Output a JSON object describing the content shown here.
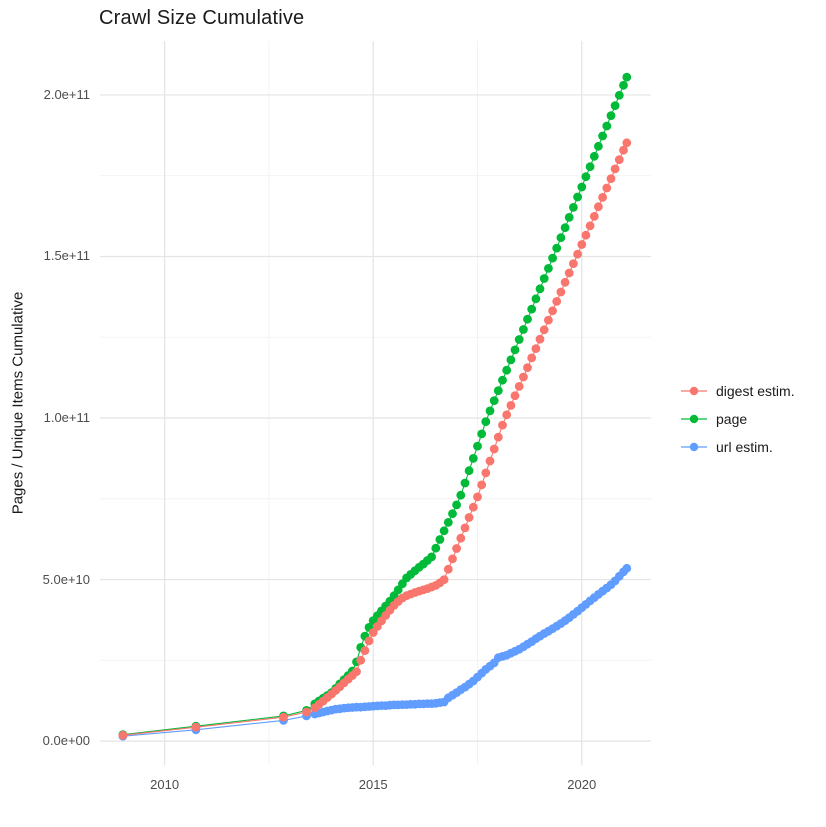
{
  "title": "Crawl Size Cumulative",
  "chart_data": {
    "type": "scatter",
    "title": "Crawl Size Cumulative",
    "xlabel": "",
    "ylabel": "Pages / Unique Items Cumulative",
    "value_unit": "1e9",
    "grid": true,
    "legend_position": "right",
    "x_domain": [
      2008.45,
      2021.66
    ],
    "y_domain": [
      -7.4,
      216.7
    ],
    "x_ticks": {
      "labels": [
        "2010",
        "2015",
        "2020"
      ],
      "values": [
        2010,
        2015,
        2020
      ],
      "minor": [
        2012.5,
        2017.5
      ]
    },
    "y_ticks": {
      "labels": [
        "0.0e+00",
        "5.0e+10",
        "1.0e+11",
        "1.5e+11",
        "2.0e+11"
      ],
      "values": [
        0,
        50,
        100,
        150,
        200
      ],
      "minor": [
        25,
        75,
        125,
        175
      ]
    },
    "draw_order": [
      "page",
      "url estim.",
      "digest estim."
    ],
    "series": [
      {
        "name": "digest estim.",
        "color": "#F8766D",
        "points": [
          [
            2009.0,
            1.8
          ],
          [
            2010.75,
            4.3
          ],
          [
            2012.85,
            7.4
          ],
          [
            2013.4,
            9.0
          ],
          [
            2013.6,
            10.3
          ],
          [
            2013.7,
            11.4
          ],
          [
            2013.8,
            12.4
          ],
          [
            2013.9,
            13.5
          ],
          [
            2014.0,
            14.5
          ],
          [
            2014.1,
            15.7
          ],
          [
            2014.2,
            16.8
          ],
          [
            2014.3,
            18.0
          ],
          [
            2014.4,
            19.2
          ],
          [
            2014.5,
            20.3
          ],
          [
            2014.6,
            21.5
          ],
          [
            2014.7,
            25.0
          ],
          [
            2014.8,
            28.0
          ],
          [
            2014.9,
            31.0
          ],
          [
            2015.0,
            33.6
          ],
          [
            2015.1,
            35.5
          ],
          [
            2015.2,
            37.2
          ],
          [
            2015.3,
            38.9
          ],
          [
            2015.4,
            40.5
          ],
          [
            2015.5,
            42.0
          ],
          [
            2015.6,
            43.2
          ],
          [
            2015.7,
            44.3
          ],
          [
            2015.8,
            45.0
          ],
          [
            2015.9,
            45.5
          ],
          [
            2016.0,
            46.0
          ],
          [
            2016.1,
            46.4
          ],
          [
            2016.2,
            46.8
          ],
          [
            2016.3,
            47.2
          ],
          [
            2016.4,
            47.7
          ],
          [
            2016.5,
            48.2
          ],
          [
            2016.6,
            49.0
          ],
          [
            2016.7,
            50.0
          ],
          [
            2016.8,
            53.2
          ],
          [
            2016.9,
            56.4
          ],
          [
            2017.0,
            59.6
          ],
          [
            2017.1,
            62.8
          ],
          [
            2017.2,
            66.0
          ],
          [
            2017.3,
            69.2
          ],
          [
            2017.4,
            72.4
          ],
          [
            2017.5,
            75.6
          ],
          [
            2017.6,
            79.3
          ],
          [
            2017.7,
            83.0
          ],
          [
            2017.8,
            86.7
          ],
          [
            2017.9,
            90.4
          ],
          [
            2018.0,
            94.1
          ],
          [
            2018.1,
            97.8
          ],
          [
            2018.2,
            101.0
          ],
          [
            2018.3,
            103.9
          ],
          [
            2018.4,
            106.9
          ],
          [
            2018.5,
            109.8
          ],
          [
            2018.6,
            112.7
          ],
          [
            2018.7,
            115.6
          ],
          [
            2018.8,
            118.6
          ],
          [
            2018.9,
            121.5
          ],
          [
            2019.0,
            124.4
          ],
          [
            2019.1,
            127.3
          ],
          [
            2019.2,
            130.3
          ],
          [
            2019.3,
            133.2
          ],
          [
            2019.4,
            136.1
          ],
          [
            2019.5,
            139.0
          ],
          [
            2019.6,
            142.0
          ],
          [
            2019.7,
            144.9
          ],
          [
            2019.8,
            147.8
          ],
          [
            2019.9,
            150.7
          ],
          [
            2020.0,
            153.7
          ],
          [
            2020.1,
            156.6
          ],
          [
            2020.2,
            159.5
          ],
          [
            2020.3,
            162.4
          ],
          [
            2020.4,
            165.4
          ],
          [
            2020.5,
            168.3
          ],
          [
            2020.6,
            171.2
          ],
          [
            2020.7,
            174.1
          ],
          [
            2020.8,
            177.1
          ],
          [
            2020.9,
            180.0
          ],
          [
            2021.0,
            182.9
          ],
          [
            2021.08,
            185.2
          ]
        ]
      },
      {
        "name": "page",
        "color": "#00BA38",
        "points": [
          [
            2009.0,
            2.0
          ],
          [
            2010.75,
            4.6
          ],
          [
            2012.85,
            7.8
          ],
          [
            2013.4,
            9.5
          ],
          [
            2013.6,
            11.5
          ],
          [
            2013.7,
            12.4
          ],
          [
            2013.8,
            13.3
          ],
          [
            2013.9,
            14.1
          ],
          [
            2014.0,
            15.0
          ],
          [
            2014.1,
            16.3
          ],
          [
            2014.2,
            17.7
          ],
          [
            2014.3,
            19.0
          ],
          [
            2014.4,
            20.3
          ],
          [
            2014.5,
            21.7
          ],
          [
            2014.6,
            24.5
          ],
          [
            2014.7,
            29.0
          ],
          [
            2014.8,
            32.5
          ],
          [
            2014.9,
            35.2
          ],
          [
            2015.0,
            37.3
          ],
          [
            2015.1,
            38.8
          ],
          [
            2015.2,
            40.3
          ],
          [
            2015.3,
            41.8
          ],
          [
            2015.4,
            43.3
          ],
          [
            2015.5,
            45.0
          ],
          [
            2015.6,
            46.8
          ],
          [
            2015.7,
            48.7
          ],
          [
            2015.8,
            50.5
          ],
          [
            2015.9,
            51.6
          ],
          [
            2016.0,
            52.7
          ],
          [
            2016.1,
            53.8
          ],
          [
            2016.2,
            54.8
          ],
          [
            2016.3,
            55.9
          ],
          [
            2016.4,
            57.0
          ],
          [
            2016.5,
            59.7
          ],
          [
            2016.6,
            62.4
          ],
          [
            2016.7,
            65.1
          ],
          [
            2016.8,
            67.7
          ],
          [
            2016.9,
            70.4
          ],
          [
            2017.0,
            73.1
          ],
          [
            2017.1,
            76.1
          ],
          [
            2017.2,
            79.9
          ],
          [
            2017.3,
            83.7
          ],
          [
            2017.4,
            87.5
          ],
          [
            2017.5,
            91.3
          ],
          [
            2017.6,
            95.1
          ],
          [
            2017.7,
            98.9
          ],
          [
            2017.8,
            102.2
          ],
          [
            2017.9,
            105.4
          ],
          [
            2018.0,
            108.5
          ],
          [
            2018.1,
            111.7
          ],
          [
            2018.2,
            114.8
          ],
          [
            2018.3,
            118.0
          ],
          [
            2018.4,
            121.1
          ],
          [
            2018.5,
            124.3
          ],
          [
            2018.6,
            127.4
          ],
          [
            2018.7,
            130.6
          ],
          [
            2018.8,
            133.7
          ],
          [
            2018.9,
            136.9
          ],
          [
            2019.0,
            140.0
          ],
          [
            2019.1,
            143.2
          ],
          [
            2019.2,
            146.3
          ],
          [
            2019.3,
            149.5
          ],
          [
            2019.4,
            152.6
          ],
          [
            2019.5,
            155.8
          ],
          [
            2019.6,
            158.9
          ],
          [
            2019.7,
            162.1
          ],
          [
            2019.8,
            165.2
          ],
          [
            2019.9,
            168.4
          ],
          [
            2020.0,
            171.5
          ],
          [
            2020.1,
            174.7
          ],
          [
            2020.2,
            177.8
          ],
          [
            2020.3,
            181.0
          ],
          [
            2020.4,
            184.1
          ],
          [
            2020.5,
            187.3
          ],
          [
            2020.6,
            190.4
          ],
          [
            2020.7,
            193.6
          ],
          [
            2020.8,
            196.7
          ],
          [
            2020.9,
            199.9
          ],
          [
            2021.0,
            203.0
          ],
          [
            2021.08,
            205.5
          ]
        ]
      },
      {
        "name": "url estim.",
        "color": "#619CFF",
        "points": [
          [
            2009.0,
            1.5
          ],
          [
            2010.75,
            3.5
          ],
          [
            2012.85,
            6.4
          ],
          [
            2013.4,
            7.8
          ],
          [
            2013.6,
            8.4
          ],
          [
            2013.7,
            8.7
          ],
          [
            2013.8,
            9.0
          ],
          [
            2013.9,
            9.3
          ],
          [
            2014.0,
            9.6
          ],
          [
            2014.1,
            9.9
          ],
          [
            2014.2,
            10.0
          ],
          [
            2014.3,
            10.2
          ],
          [
            2014.4,
            10.3
          ],
          [
            2014.5,
            10.4
          ],
          [
            2014.6,
            10.5
          ],
          [
            2014.7,
            10.5
          ],
          [
            2014.8,
            10.6
          ],
          [
            2014.9,
            10.7
          ],
          [
            2015.0,
            10.8
          ],
          [
            2015.1,
            10.9
          ],
          [
            2015.2,
            11.0
          ],
          [
            2015.3,
            11.0
          ],
          [
            2015.4,
            11.1
          ],
          [
            2015.5,
            11.2
          ],
          [
            2015.6,
            11.2
          ],
          [
            2015.7,
            11.3
          ],
          [
            2015.8,
            11.3
          ],
          [
            2015.9,
            11.4
          ],
          [
            2016.0,
            11.4
          ],
          [
            2016.1,
            11.5
          ],
          [
            2016.2,
            11.5
          ],
          [
            2016.3,
            11.6
          ],
          [
            2016.4,
            11.6
          ],
          [
            2016.5,
            11.7
          ],
          [
            2016.6,
            11.9
          ],
          [
            2016.7,
            12.1
          ],
          [
            2016.8,
            13.4
          ],
          [
            2016.9,
            14.2
          ],
          [
            2017.0,
            15.0
          ],
          [
            2017.1,
            15.9
          ],
          [
            2017.2,
            16.7
          ],
          [
            2017.3,
            17.6
          ],
          [
            2017.4,
            18.6
          ],
          [
            2017.5,
            19.8
          ],
          [
            2017.6,
            21.0
          ],
          [
            2017.7,
            22.2
          ],
          [
            2017.8,
            23.2
          ],
          [
            2017.9,
            24.2
          ],
          [
            2018.0,
            25.8
          ],
          [
            2018.1,
            26.2
          ],
          [
            2018.2,
            26.6
          ],
          [
            2018.3,
            27.2
          ],
          [
            2018.4,
            27.8
          ],
          [
            2018.5,
            28.4
          ],
          [
            2018.6,
            29.2
          ],
          [
            2018.7,
            30.0
          ],
          [
            2018.8,
            30.8
          ],
          [
            2018.9,
            31.7
          ],
          [
            2019.0,
            32.5
          ],
          [
            2019.1,
            33.3
          ],
          [
            2019.2,
            34.0
          ],
          [
            2019.3,
            34.8
          ],
          [
            2019.4,
            35.6
          ],
          [
            2019.5,
            36.4
          ],
          [
            2019.6,
            37.3
          ],
          [
            2019.7,
            38.2
          ],
          [
            2019.8,
            39.2
          ],
          [
            2019.9,
            40.2
          ],
          [
            2020.0,
            41.3
          ],
          [
            2020.1,
            42.3
          ],
          [
            2020.2,
            43.4
          ],
          [
            2020.3,
            44.4
          ],
          [
            2020.4,
            45.4
          ],
          [
            2020.5,
            46.4
          ],
          [
            2020.6,
            47.4
          ],
          [
            2020.7,
            48.4
          ],
          [
            2020.8,
            49.6
          ],
          [
            2020.9,
            51.0
          ],
          [
            2021.0,
            52.4
          ],
          [
            2021.08,
            53.5
          ]
        ]
      }
    ]
  },
  "legend": {
    "items": [
      {
        "label": "digest estim.",
        "color": "#F8766D"
      },
      {
        "label": "page",
        "color": "#00BA38"
      },
      {
        "label": "url estim.",
        "color": "#619CFF"
      }
    ]
  },
  "style": {
    "grid_major_color": "#E4E4E4",
    "grid_minor_color": "#F0F0F0",
    "point_radius": 4.4
  }
}
